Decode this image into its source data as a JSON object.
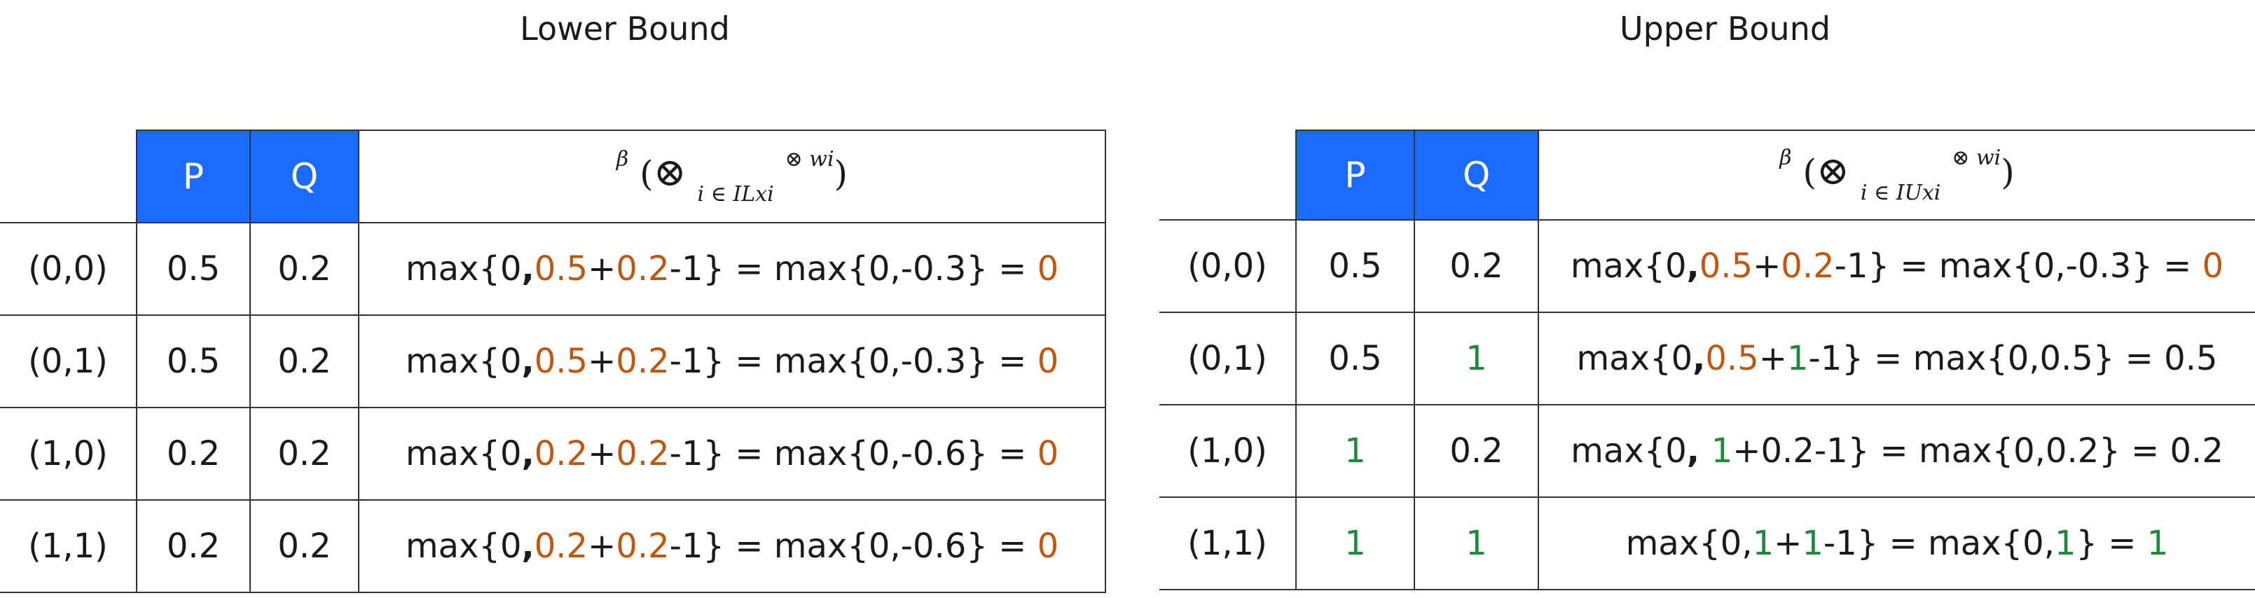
{
  "lower": {
    "title": "Lower Bound",
    "headers": {
      "p": "P",
      "q": "Q",
      "beta": "β",
      "open": "(",
      "otimes": "⊗",
      "index": "i ∈ ILxi",
      "sup": "⊗ wi",
      "close": ")"
    },
    "rows": [
      {
        "label": "(0,0)",
        "p": "0.5",
        "q": "0.2",
        "f": [
          "max{0",
          ",",
          "0.5",
          "+",
          "0.2",
          "-1} = max{0,-0.3} = ",
          "0"
        ]
      },
      {
        "label": "(0,1)",
        "p": "0.5",
        "q": "0.2",
        "f": [
          "max{0",
          ",",
          "0.5",
          "+",
          "0.2",
          "-1} = max{0,-0.3} = ",
          "0"
        ]
      },
      {
        "label": "(1,0)",
        "p": "0.2",
        "q": "0.2",
        "f": [
          "max{0",
          ",",
          "0.2",
          "+",
          "0.2",
          "-1} = max{0,-0.6} = ",
          "0"
        ]
      },
      {
        "label": "(1,1)",
        "p": "0.2",
        "q": "0.2",
        "f": [
          "max{0",
          ",",
          "0.2",
          "+",
          "0.2",
          "-1} = max{0,-0.6} = ",
          "0"
        ]
      }
    ]
  },
  "upper": {
    "title": "Upper Bound",
    "headers": {
      "p": "P",
      "q": "Q",
      "beta": "β",
      "open": "(",
      "otimes": "⊗",
      "index": "i ∈ IUxi",
      "sup": "⊗ wi",
      "close": ")"
    },
    "rows": [
      {
        "label": "(0,0)",
        "p": "0.5",
        "q": "0.2",
        "f": [
          "max{0",
          ",",
          "0.5",
          "+",
          "0.2",
          "-1} = max{0,-0.3} = ",
          "0"
        ]
      },
      {
        "label": "(0,1)",
        "p": "0.5",
        "q": "1",
        "f": [
          "max{0",
          ",",
          "0.5",
          "+",
          "1",
          "-1} = max{0,0.5} = ",
          "0.5"
        ]
      },
      {
        "label": "(1,0)",
        "p": "1",
        "q": "0.2",
        "f": [
          "max{0",
          ", ",
          "1",
          "+",
          "0.2",
          "-1} = max{0,0.2} = ",
          "0.2"
        ]
      },
      {
        "label": "(1,1)",
        "p": "1",
        "q": "1",
        "f": [
          "max{0",
          ",",
          "1",
          "+",
          "1",
          "-1} = max{0,",
          "1",
          "} = ",
          "1"
        ]
      }
    ]
  },
  "colors": {
    "header_bg": "#1a6bff",
    "orange": "#c0570f",
    "green": "#1f8a3a"
  }
}
